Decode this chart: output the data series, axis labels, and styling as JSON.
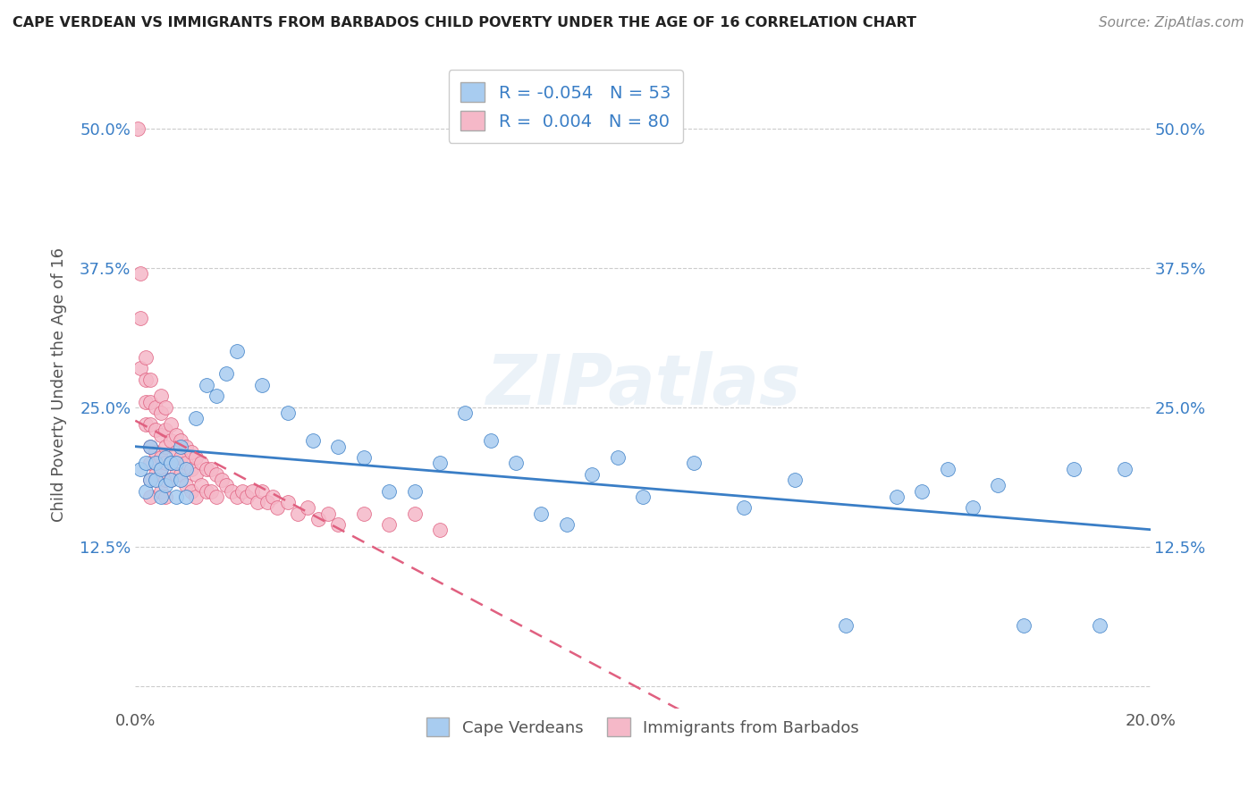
{
  "title": "CAPE VERDEAN VS IMMIGRANTS FROM BARBADOS CHILD POVERTY UNDER THE AGE OF 16 CORRELATION CHART",
  "source": "Source: ZipAtlas.com",
  "ylabel": "Child Poverty Under the Age of 16",
  "xlim": [
    0.0,
    0.2
  ],
  "ylim": [
    -0.02,
    0.56
  ],
  "yticks": [
    0.0,
    0.125,
    0.25,
    0.375,
    0.5
  ],
  "ytick_labels": [
    "",
    "12.5%",
    "25.0%",
    "37.5%",
    "50.0%"
  ],
  "xticks": [
    0.0,
    0.05,
    0.1,
    0.15,
    0.2
  ],
  "xtick_labels": [
    "0.0%",
    "",
    "",
    "",
    "20.0%"
  ],
  "r_cape_verdean": -0.054,
  "n_cape_verdean": 53,
  "r_barbados": 0.004,
  "n_barbados": 80,
  "color_blue": "#A8CCF0",
  "color_pink": "#F5B8C8",
  "color_blue_line": "#3A7EC6",
  "color_pink_line": "#E06080",
  "watermark": "ZIPatlas",
  "cape_verdean_x": [
    0.001,
    0.002,
    0.002,
    0.003,
    0.003,
    0.004,
    0.004,
    0.005,
    0.005,
    0.006,
    0.006,
    0.007,
    0.007,
    0.008,
    0.008,
    0.009,
    0.009,
    0.01,
    0.01,
    0.012,
    0.014,
    0.016,
    0.018,
    0.02,
    0.025,
    0.03,
    0.035,
    0.04,
    0.045,
    0.05,
    0.055,
    0.06,
    0.065,
    0.07,
    0.075,
    0.08,
    0.085,
    0.09,
    0.095,
    0.1,
    0.11,
    0.12,
    0.13,
    0.14,
    0.15,
    0.155,
    0.16,
    0.165,
    0.17,
    0.175,
    0.185,
    0.19,
    0.195
  ],
  "cape_verdean_y": [
    0.195,
    0.175,
    0.2,
    0.185,
    0.215,
    0.2,
    0.185,
    0.195,
    0.17,
    0.205,
    0.18,
    0.2,
    0.185,
    0.2,
    0.17,
    0.215,
    0.185,
    0.195,
    0.17,
    0.24,
    0.27,
    0.26,
    0.28,
    0.3,
    0.27,
    0.245,
    0.22,
    0.215,
    0.205,
    0.175,
    0.175,
    0.2,
    0.245,
    0.22,
    0.2,
    0.155,
    0.145,
    0.19,
    0.205,
    0.17,
    0.2,
    0.16,
    0.185,
    0.055,
    0.17,
    0.175,
    0.195,
    0.16,
    0.18,
    0.055,
    0.195,
    0.055,
    0.195
  ],
  "barbados_x": [
    0.0005,
    0.001,
    0.001,
    0.001,
    0.002,
    0.002,
    0.002,
    0.002,
    0.003,
    0.003,
    0.003,
    0.003,
    0.003,
    0.003,
    0.003,
    0.004,
    0.004,
    0.004,
    0.004,
    0.005,
    0.005,
    0.005,
    0.005,
    0.005,
    0.005,
    0.006,
    0.006,
    0.006,
    0.006,
    0.006,
    0.006,
    0.007,
    0.007,
    0.007,
    0.007,
    0.008,
    0.008,
    0.008,
    0.009,
    0.009,
    0.009,
    0.01,
    0.01,
    0.01,
    0.011,
    0.011,
    0.011,
    0.012,
    0.012,
    0.012,
    0.013,
    0.013,
    0.014,
    0.014,
    0.015,
    0.015,
    0.016,
    0.016,
    0.017,
    0.018,
    0.019,
    0.02,
    0.021,
    0.022,
    0.023,
    0.024,
    0.025,
    0.026,
    0.027,
    0.028,
    0.03,
    0.032,
    0.034,
    0.036,
    0.038,
    0.04,
    0.045,
    0.05,
    0.055,
    0.06
  ],
  "barbados_y": [
    0.5,
    0.37,
    0.33,
    0.285,
    0.295,
    0.275,
    0.255,
    0.235,
    0.275,
    0.255,
    0.235,
    0.215,
    0.2,
    0.185,
    0.17,
    0.25,
    0.23,
    0.21,
    0.19,
    0.26,
    0.245,
    0.225,
    0.205,
    0.19,
    0.175,
    0.25,
    0.23,
    0.215,
    0.2,
    0.185,
    0.17,
    0.235,
    0.22,
    0.2,
    0.185,
    0.225,
    0.21,
    0.19,
    0.22,
    0.205,
    0.19,
    0.215,
    0.2,
    0.18,
    0.21,
    0.195,
    0.175,
    0.205,
    0.19,
    0.17,
    0.2,
    0.18,
    0.195,
    0.175,
    0.195,
    0.175,
    0.19,
    0.17,
    0.185,
    0.18,
    0.175,
    0.17,
    0.175,
    0.17,
    0.175,
    0.165,
    0.175,
    0.165,
    0.17,
    0.16,
    0.165,
    0.155,
    0.16,
    0.15,
    0.155,
    0.145,
    0.155,
    0.145,
    0.155,
    0.14
  ]
}
